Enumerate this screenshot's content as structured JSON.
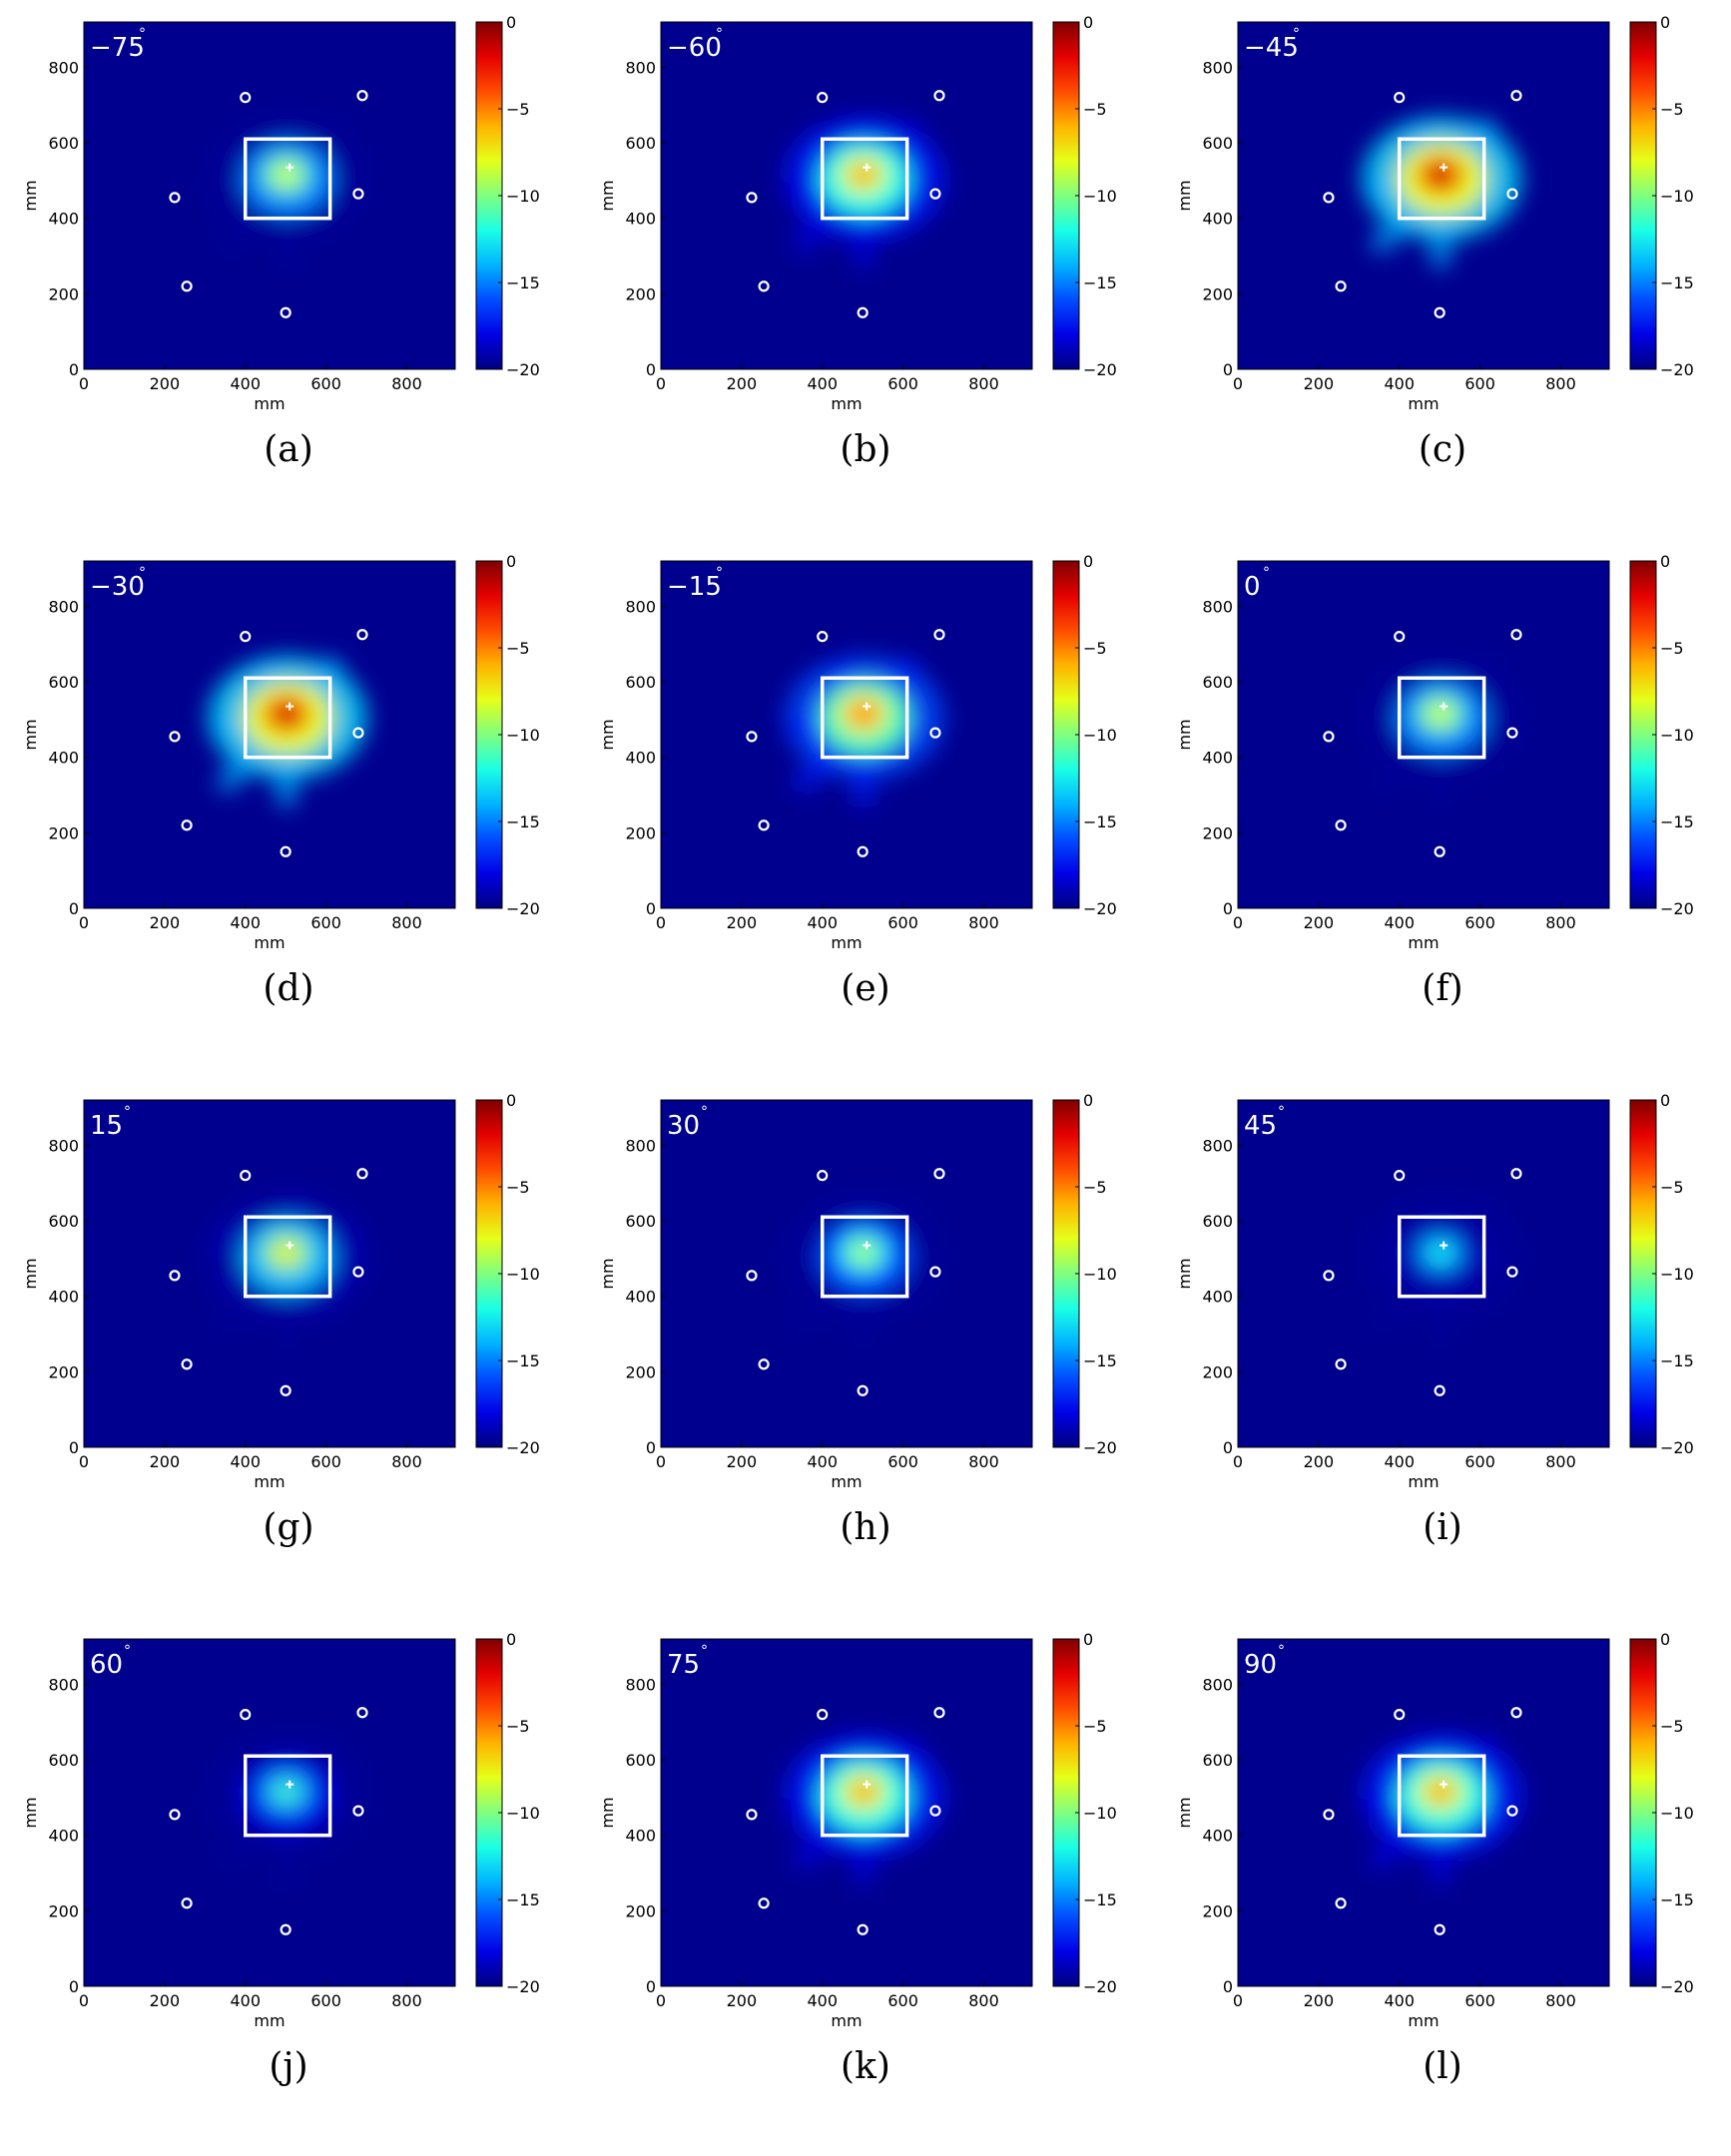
{
  "chart_data": [
    {
      "type": "heatmap",
      "caption": "(a)",
      "angle": "−75",
      "xlabel": "mm",
      "ylabel": "mm",
      "xlim": [
        0,
        920
      ],
      "ylim": [
        0,
        920
      ],
      "xticks": [
        "0",
        "200",
        "400",
        "600",
        "800"
      ],
      "yticks": [
        "0",
        "200",
        "400",
        "600",
        "800"
      ],
      "colorbar": {
        "ticks": [
          "0",
          "−5",
          "−10",
          "−15",
          "−20"
        ],
        "range": [
          -20,
          0
        ]
      },
      "peak": -8,
      "box": {
        "x": [
          400,
          610
        ],
        "y": [
          400,
          610
        ]
      },
      "markers": [
        [
          400,
          720
        ],
        [
          690,
          725
        ],
        [
          225,
          455
        ],
        [
          680,
          465
        ],
        [
          255,
          220
        ],
        [
          500,
          150
        ]
      ],
      "cross": [
        510,
        535
      ],
      "colors": {
        "background": "#00008f",
        "box": "#ffffff",
        "markers": "#ffffff"
      }
    },
    {
      "type": "heatmap",
      "caption": "(b)",
      "angle": "−60",
      "xlabel": "mm",
      "ylabel": "mm",
      "xlim": [
        0,
        920
      ],
      "ylim": [
        0,
        920
      ],
      "xticks": [
        "0",
        "200",
        "400",
        "600",
        "800"
      ],
      "yticks": [
        "0",
        "200",
        "400",
        "600",
        "800"
      ],
      "colorbar": {
        "ticks": [
          "0",
          "−5",
          "−10",
          "−15",
          "−20"
        ],
        "range": [
          -20,
          0
        ]
      },
      "peak": -5,
      "box": {
        "x": [
          400,
          610
        ],
        "y": [
          400,
          610
        ]
      },
      "markers": [
        [
          400,
          720
        ],
        [
          690,
          725
        ],
        [
          225,
          455
        ],
        [
          680,
          465
        ],
        [
          255,
          220
        ],
        [
          500,
          150
        ]
      ],
      "cross": [
        510,
        535
      ],
      "colors": {
        "background": "#00008f",
        "box": "#ffffff",
        "markers": "#ffffff"
      }
    },
    {
      "type": "heatmap",
      "caption": "(c)",
      "angle": "−45",
      "xlabel": "mm",
      "ylabel": "mm",
      "xlim": [
        0,
        920
      ],
      "ylim": [
        0,
        920
      ],
      "xticks": [
        "0",
        "200",
        "400",
        "600",
        "800"
      ],
      "yticks": [
        "0",
        "200",
        "400",
        "600",
        "800"
      ],
      "colorbar": {
        "ticks": [
          "0",
          "−5",
          "−10",
          "−15",
          "−20"
        ],
        "range": [
          -20,
          0
        ]
      },
      "peak": -1,
      "box": {
        "x": [
          400,
          610
        ],
        "y": [
          400,
          610
        ]
      },
      "markers": [
        [
          400,
          720
        ],
        [
          690,
          725
        ],
        [
          225,
          455
        ],
        [
          680,
          465
        ],
        [
          255,
          220
        ],
        [
          500,
          150
        ]
      ],
      "cross": [
        510,
        535
      ],
      "colors": {
        "background": "#00008f",
        "box": "#ffffff",
        "markers": "#ffffff"
      }
    },
    {
      "type": "heatmap",
      "caption": "(d)",
      "angle": "−30",
      "xlabel": "mm",
      "ylabel": "mm",
      "xlim": [
        0,
        920
      ],
      "ylim": [
        0,
        920
      ],
      "xticks": [
        "0",
        "200",
        "400",
        "600",
        "800"
      ],
      "yticks": [
        "0",
        "200",
        "400",
        "600",
        "800"
      ],
      "colorbar": {
        "ticks": [
          "0",
          "−5",
          "−10",
          "−15",
          "−20"
        ],
        "range": [
          -20,
          0
        ]
      },
      "peak": -1,
      "box": {
        "x": [
          400,
          610
        ],
        "y": [
          400,
          610
        ]
      },
      "markers": [
        [
          400,
          720
        ],
        [
          690,
          725
        ],
        [
          225,
          455
        ],
        [
          680,
          465
        ],
        [
          255,
          220
        ],
        [
          500,
          150
        ]
      ],
      "cross": [
        510,
        535
      ],
      "colors": {
        "background": "#00008f",
        "box": "#ffffff",
        "markers": "#ffffff"
      }
    },
    {
      "type": "heatmap",
      "caption": "(e)",
      "angle": "−15",
      "xlabel": "mm",
      "ylabel": "mm",
      "xlim": [
        0,
        920
      ],
      "ylim": [
        0,
        920
      ],
      "xticks": [
        "0",
        "200",
        "400",
        "600",
        "800"
      ],
      "yticks": [
        "0",
        "200",
        "400",
        "600",
        "800"
      ],
      "colorbar": {
        "ticks": [
          "0",
          "−5",
          "−10",
          "−15",
          "−20"
        ],
        "range": [
          -20,
          0
        ]
      },
      "peak": -4,
      "box": {
        "x": [
          400,
          610
        ],
        "y": [
          400,
          610
        ]
      },
      "markers": [
        [
          400,
          720
        ],
        [
          690,
          725
        ],
        [
          225,
          455
        ],
        [
          680,
          465
        ],
        [
          255,
          220
        ],
        [
          500,
          150
        ]
      ],
      "cross": [
        510,
        535
      ],
      "colors": {
        "background": "#00008f",
        "box": "#ffffff",
        "markers": "#ffffff"
      }
    },
    {
      "type": "heatmap",
      "caption": "(f)",
      "angle": "0",
      "xlabel": "mm",
      "ylabel": "mm",
      "xlim": [
        0,
        920
      ],
      "ylim": [
        0,
        920
      ],
      "xticks": [
        "0",
        "200",
        "400",
        "600",
        "800"
      ],
      "yticks": [
        "0",
        "200",
        "400",
        "600",
        "800"
      ],
      "colorbar": {
        "ticks": [
          "0",
          "−5",
          "−10",
          "−15",
          "−20"
        ],
        "range": [
          -20,
          0
        ]
      },
      "peak": -8,
      "box": {
        "x": [
          400,
          610
        ],
        "y": [
          400,
          610
        ]
      },
      "markers": [
        [
          400,
          720
        ],
        [
          690,
          725
        ],
        [
          225,
          455
        ],
        [
          680,
          465
        ],
        [
          255,
          220
        ],
        [
          500,
          150
        ]
      ],
      "cross": [
        510,
        535
      ],
      "colors": {
        "background": "#00008f",
        "box": "#ffffff",
        "markers": "#ffffff"
      }
    },
    {
      "type": "heatmap",
      "caption": "(g)",
      "angle": "15",
      "xlabel": "mm",
      "ylabel": "mm",
      "xlim": [
        0,
        920
      ],
      "ylim": [
        0,
        920
      ],
      "xticks": [
        "0",
        "200",
        "400",
        "600",
        "800"
      ],
      "yticks": [
        "0",
        "200",
        "400",
        "600",
        "800"
      ],
      "colorbar": {
        "ticks": [
          "0",
          "−5",
          "−10",
          "−15",
          "−20"
        ],
        "range": [
          -20,
          0
        ]
      },
      "peak": -7,
      "box": {
        "x": [
          400,
          610
        ],
        "y": [
          400,
          610
        ]
      },
      "markers": [
        [
          400,
          720
        ],
        [
          690,
          725
        ],
        [
          225,
          455
        ],
        [
          680,
          465
        ],
        [
          255,
          220
        ],
        [
          500,
          150
        ]
      ],
      "cross": [
        510,
        535
      ],
      "colors": {
        "background": "#00008f",
        "box": "#ffffff",
        "markers": "#ffffff"
      }
    },
    {
      "type": "heatmap",
      "caption": "(h)",
      "angle": "30",
      "xlabel": "mm",
      "ylabel": "mm",
      "xlim": [
        0,
        920
      ],
      "ylim": [
        0,
        920
      ],
      "xticks": [
        "0",
        "200",
        "400",
        "600",
        "800"
      ],
      "yticks": [
        "0",
        "200",
        "400",
        "600",
        "800"
      ],
      "colorbar": {
        "ticks": [
          "0",
          "−5",
          "−10",
          "−15",
          "−20"
        ],
        "range": [
          -20,
          0
        ]
      },
      "peak": -9,
      "box": {
        "x": [
          400,
          610
        ],
        "y": [
          400,
          610
        ]
      },
      "markers": [
        [
          400,
          720
        ],
        [
          690,
          725
        ],
        [
          225,
          455
        ],
        [
          680,
          465
        ],
        [
          255,
          220
        ],
        [
          500,
          150
        ]
      ],
      "cross": [
        510,
        535
      ],
      "colors": {
        "background": "#00008f",
        "box": "#ffffff",
        "markers": "#ffffff"
      }
    },
    {
      "type": "heatmap",
      "caption": "(i)",
      "angle": "45",
      "xlabel": "mm",
      "ylabel": "mm",
      "xlim": [
        0,
        920
      ],
      "ylim": [
        0,
        920
      ],
      "xticks": [
        "0",
        "200",
        "400",
        "600",
        "800"
      ],
      "yticks": [
        "0",
        "200",
        "400",
        "600",
        "800"
      ],
      "colorbar": {
        "ticks": [
          "0",
          "−5",
          "−10",
          "−15",
          "−20"
        ],
        "range": [
          -20,
          0
        ]
      },
      "peak": -12,
      "box": {
        "x": [
          400,
          610
        ],
        "y": [
          400,
          610
        ]
      },
      "markers": [
        [
          400,
          720
        ],
        [
          690,
          725
        ],
        [
          225,
          455
        ],
        [
          680,
          465
        ],
        [
          255,
          220
        ],
        [
          500,
          150
        ]
      ],
      "cross": [
        510,
        535
      ],
      "colors": {
        "background": "#00008f",
        "box": "#ffffff",
        "markers": "#ffffff"
      }
    },
    {
      "type": "heatmap",
      "caption": "(j)",
      "angle": "60",
      "xlabel": "mm",
      "ylabel": "mm",
      "xlim": [
        0,
        920
      ],
      "ylim": [
        0,
        920
      ],
      "xticks": [
        "0",
        "200",
        "400",
        "600",
        "800"
      ],
      "yticks": [
        "0",
        "200",
        "400",
        "600",
        "800"
      ],
      "colorbar": {
        "ticks": [
          "0",
          "−5",
          "−10",
          "−15",
          "−20"
        ],
        "range": [
          -20,
          0
        ]
      },
      "peak": -11,
      "box": {
        "x": [
          400,
          610
        ],
        "y": [
          400,
          610
        ]
      },
      "markers": [
        [
          400,
          720
        ],
        [
          690,
          725
        ],
        [
          225,
          455
        ],
        [
          680,
          465
        ],
        [
          255,
          220
        ],
        [
          500,
          150
        ]
      ],
      "cross": [
        510,
        535
      ],
      "colors": {
        "background": "#00008f",
        "box": "#ffffff",
        "markers": "#ffffff"
      }
    },
    {
      "type": "heatmap",
      "caption": "(k)",
      "angle": "75",
      "xlabel": "mm",
      "ylabel": "mm",
      "xlim": [
        0,
        920
      ],
      "ylim": [
        0,
        920
      ],
      "xticks": [
        "0",
        "200",
        "400",
        "600",
        "800"
      ],
      "yticks": [
        "0",
        "200",
        "400",
        "600",
        "800"
      ],
      "colorbar": {
        "ticks": [
          "0",
          "−5",
          "−10",
          "−15",
          "−20"
        ],
        "range": [
          -20,
          0
        ]
      },
      "peak": -5,
      "box": {
        "x": [
          400,
          610
        ],
        "y": [
          400,
          610
        ]
      },
      "markers": [
        [
          400,
          720
        ],
        [
          690,
          725
        ],
        [
          225,
          455
        ],
        [
          680,
          465
        ],
        [
          255,
          220
        ],
        [
          500,
          150
        ]
      ],
      "cross": [
        510,
        535
      ],
      "colors": {
        "background": "#00008f",
        "box": "#ffffff",
        "markers": "#ffffff"
      }
    },
    {
      "type": "heatmap",
      "caption": "(l)",
      "angle": "90",
      "xlabel": "mm",
      "ylabel": "mm",
      "xlim": [
        0,
        920
      ],
      "ylim": [
        0,
        920
      ],
      "xticks": [
        "0",
        "200",
        "400",
        "600",
        "800"
      ],
      "yticks": [
        "0",
        "200",
        "400",
        "600",
        "800"
      ],
      "colorbar": {
        "ticks": [
          "0",
          "−5",
          "−10",
          "−15",
          "−20"
        ],
        "range": [
          -20,
          0
        ]
      },
      "peak": -5,
      "box": {
        "x": [
          400,
          610
        ],
        "y": [
          400,
          610
        ]
      },
      "markers": [
        [
          400,
          720
        ],
        [
          690,
          725
        ],
        [
          225,
          455
        ],
        [
          680,
          465
        ],
        [
          255,
          220
        ],
        [
          500,
          150
        ]
      ],
      "cross": [
        510,
        535
      ],
      "colors": {
        "background": "#00008f",
        "box": "#ffffff",
        "markers": "#ffffff"
      }
    }
  ]
}
